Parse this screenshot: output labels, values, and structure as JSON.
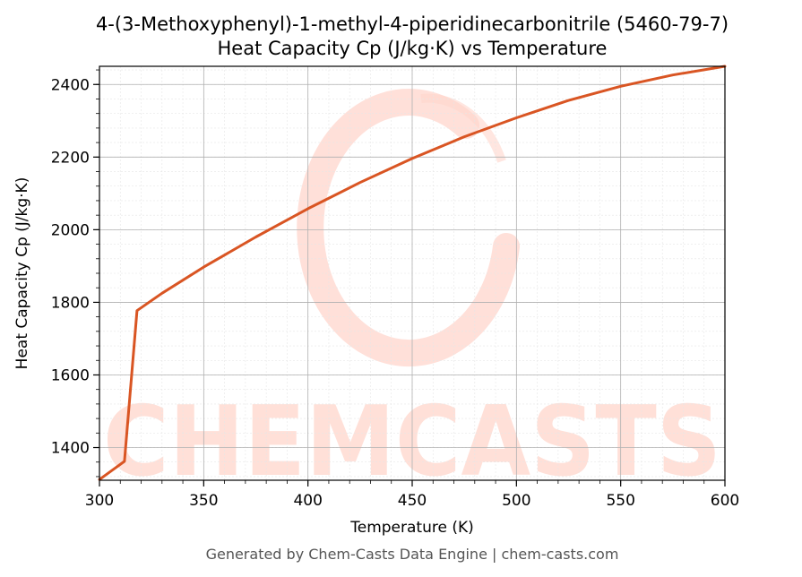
{
  "chart_data": {
    "type": "line",
    "title": "4-(3-Methoxyphenyl)-1-methyl-4-piperidinecarbonitrile (5460-79-7)",
    "subtitle": "Heat Capacity Cp (J/kg·K) vs Temperature",
    "xlabel": "Temperature (K)",
    "ylabel": "Heat Capacity Cp (J/kg·K)",
    "xlim": [
      300,
      600
    ],
    "ylim": [
      1310,
      2450
    ],
    "x_ticks": [
      300,
      350,
      400,
      450,
      500,
      550,
      600
    ],
    "y_ticks": [
      1400,
      1600,
      1800,
      2000,
      2200,
      2400
    ],
    "grid": true,
    "legend": "none",
    "series": [
      {
        "color": "#d95523",
        "x": [
          300,
          312,
          318,
          330,
          350,
          375,
          400,
          425,
          450,
          475,
          500,
          525,
          550,
          575,
          600
        ],
        "y": [
          1312,
          1362,
          1777,
          1825,
          1897,
          1980,
          2058,
          2130,
          2196,
          2256,
          2308,
          2356,
          2395,
          2426,
          2450
        ]
      }
    ],
    "watermark": "CHEMCASTS"
  },
  "footer": "Generated by Chem-Casts Data Engine | chem-casts.com"
}
